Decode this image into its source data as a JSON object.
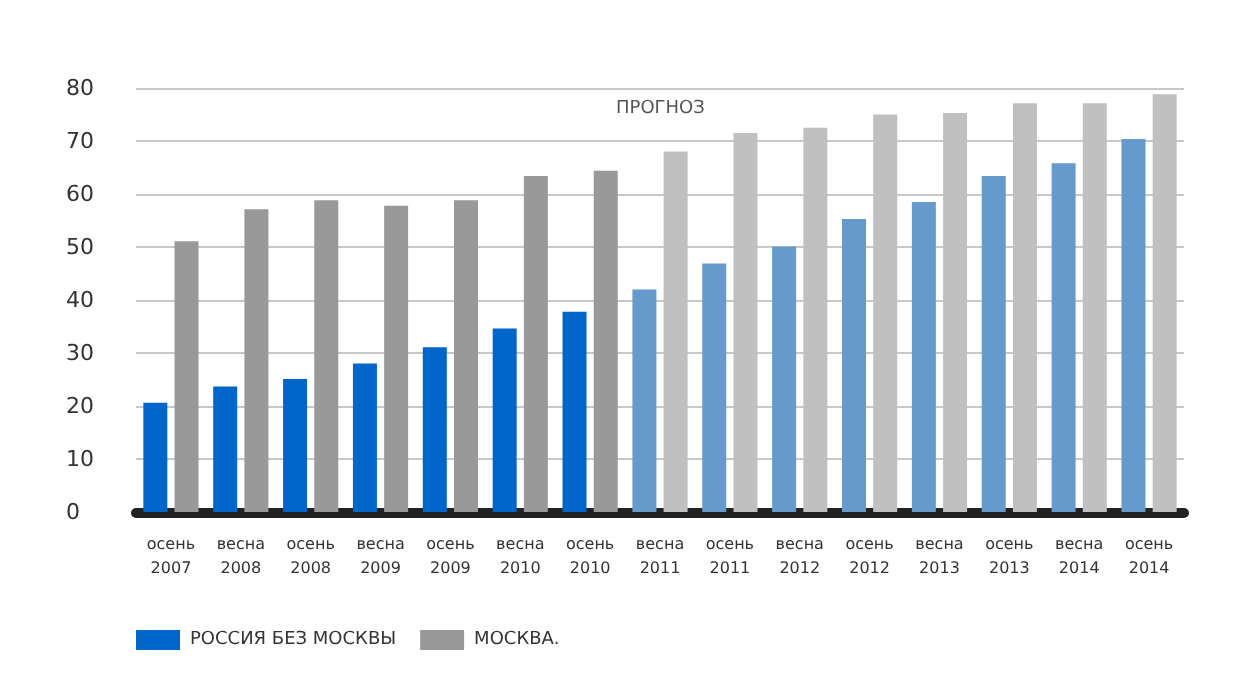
{
  "chart_data": {
    "type": "bar",
    "categories": [
      "осень\n2007",
      "весна\n2008",
      "осень\n2008",
      "весна\n2009",
      "осень\n2009",
      "весна\n2010",
      "осень\n2010",
      "весна\n2011",
      "осень\n2011",
      "весна\n2012",
      "осень\n2012",
      "весна\n2013",
      "осень\n2013",
      "весна\n2014",
      "осень\n2014"
    ],
    "series": [
      {
        "name": "РОССИЯ БЕЗ МОСКВЫ",
        "color": "#0066cc",
        "colors": [
          "#0066cc",
          "#0066cc",
          "#0066cc",
          "#0066cc",
          "#0066cc",
          "#0066cc",
          "#0066cc",
          "#6699cc",
          "#6699cc",
          "#6699cc",
          "#6699cc",
          "#6699cc",
          "#6699cc",
          "#6699cc",
          "#6699cc"
        ],
        "values": [
          20.6,
          23.7,
          25.1,
          28.0,
          31.1,
          34.6,
          37.8,
          42.0,
          46.9,
          50.1,
          55.3,
          58.5,
          63.4,
          65.8,
          70.4
        ]
      },
      {
        "name": "МОСКВА.",
        "color": "#999999",
        "colors": [
          "#999999",
          "#999999",
          "#999999",
          "#999999",
          "#999999",
          "#999999",
          "#999999",
          "#c0c0c0",
          "#c0c0c0",
          "#c0c0c0",
          "#c0c0c0",
          "#c0c0c0",
          "#c0c0c0",
          "#c0c0c0",
          "#c0c0c0"
        ],
        "values": [
          51.1,
          57.1,
          58.8,
          57.8,
          58.8,
          63.4,
          64.4,
          68.0,
          71.5,
          72.5,
          75.0,
          75.3,
          77.1,
          77.1,
          78.8
        ]
      }
    ],
    "ylim": [
      0,
      80
    ],
    "yticks": [
      0,
      10,
      20,
      30,
      40,
      50,
      60,
      70,
      80
    ],
    "grid": "y",
    "legend": "bottom left",
    "annotations": [
      "ПРОГНОЗ"
    ]
  }
}
